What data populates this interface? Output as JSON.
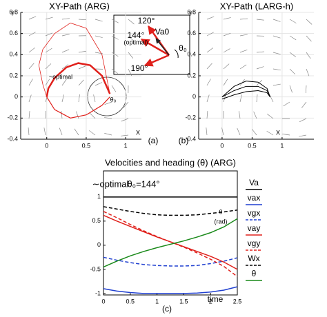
{
  "chart_data": [
    {
      "type": "path",
      "title": "XY-Path (ARG)",
      "xlabel": "X",
      "ylabel": "Y",
      "panel_label": "(a)",
      "xlim": [
        -0.33,
        1.2
      ],
      "ylim": [
        -0.4,
        0.8
      ],
      "xticks": [
        0,
        0.5,
        1
      ],
      "yticks": [
        -0.4,
        -0.2,
        0,
        0.2,
        0.4,
        0.6,
        0.8
      ],
      "grid": true,
      "annotations": [
        "~optimal",
        "θ₀"
      ],
      "inset": [
        "120°",
        "144°",
        "(optimal)",
        "190°",
        "Va0",
        "θ₀"
      ],
      "series": [
        {
          "color": "#e0201b",
          "width": 2.5,
          "x": [
            0.8,
            0.7,
            0.55,
            0.4,
            0.25,
            0.1,
            0.02,
            0.0
          ],
          "y": [
            0.03,
            0.2,
            0.3,
            0.32,
            0.28,
            0.18,
            0.08,
            0.0
          ]
        },
        {
          "color": "#e0201b",
          "width": 0.8,
          "x": [
            0.8,
            0.7,
            0.5,
            0.3,
            0.1,
            -0.05,
            -0.1,
            -0.05,
            0.0
          ],
          "y": [
            0.03,
            0.4,
            0.65,
            0.7,
            0.6,
            0.45,
            0.3,
            0.12,
            0.0
          ]
        },
        {
          "color": "#e0201b",
          "width": 1.2,
          "x": [
            0.0,
            0.1,
            0.3,
            0.5,
            0.7,
            0.8
          ],
          "y": [
            0.0,
            -0.12,
            -0.2,
            -0.17,
            -0.08,
            0.0
          ]
        }
      ]
    },
    {
      "type": "path",
      "title": "XY-Path (LARG-h)",
      "xlabel": "X",
      "ylabel": "Y",
      "panel_label": "(b)",
      "xlim": [
        -0.39,
        1.53
      ],
      "ylim": [
        -0.4,
        0.8
      ],
      "xticks": [
        0,
        0.5,
        1
      ],
      "yticks": [
        -0.4,
        -0.2,
        0,
        0.2,
        0.4,
        0.6,
        0.8
      ],
      "grid": true,
      "series": [
        {
          "color": "#000000",
          "width": 1,
          "x": [
            0.0,
            0.2,
            0.4,
            0.6,
            0.75,
            0.8
          ],
          "y": [
            0.0,
            0.1,
            0.15,
            0.14,
            0.08,
            0.0
          ]
        },
        {
          "color": "#000000",
          "width": 1,
          "x": [
            0.0,
            0.2,
            0.4,
            0.6,
            0.75,
            0.8
          ],
          "y": [
            0.0,
            0.06,
            0.1,
            0.1,
            0.06,
            0.0
          ]
        },
        {
          "color": "#000000",
          "width": 1,
          "x": [
            0.0,
            0.2,
            0.4,
            0.6,
            0.75,
            0.8
          ],
          "y": [
            -0.02,
            0.02,
            0.05,
            0.06,
            0.04,
            0.0
          ]
        }
      ]
    },
    {
      "type": "line",
      "title": "Velocities and heading (θ) (ARG)",
      "xlabel": "time",
      "panel_label": "(c)",
      "xlim": [
        0,
        2.5
      ],
      "ylim": [
        -1.03,
        1.54
      ],
      "xticks": [
        0,
        0.5,
        1,
        1.5,
        2,
        2.5
      ],
      "yticks": [
        -1,
        -0.5,
        0,
        0.5,
        1
      ],
      "annotations": [
        "∼optimal",
        "θ₀=144°",
        "θ",
        "(rad)"
      ],
      "x": [
        0,
        0.25,
        0.5,
        0.75,
        1,
        1.25,
        1.5,
        1.75,
        2,
        2.25,
        2.5
      ],
      "series": [
        {
          "name": "Va",
          "color": "#000000",
          "dashed": false,
          "values": [
            1,
            1,
            1,
            1,
            1,
            1,
            1,
            1,
            1,
            1,
            1
          ]
        },
        {
          "name": "vax",
          "color": "#1f3fd0",
          "dashed": false,
          "values": [
            -0.9,
            -0.95,
            -0.98,
            -1.0,
            -1.0,
            -1.0,
            -1.0,
            -0.99,
            -0.97,
            -0.93,
            -0.86
          ]
        },
        {
          "name": "vgx",
          "color": "#1f3fd0",
          "dashed": true,
          "values": [
            -0.25,
            -0.31,
            -0.36,
            -0.4,
            -0.42,
            -0.43,
            -0.43,
            -0.42,
            -0.38,
            -0.33,
            -0.26
          ]
        },
        {
          "name": "vay",
          "color": "#e0201b",
          "dashed": false,
          "values": [
            0.62,
            0.5,
            0.39,
            0.28,
            0.17,
            0.07,
            -0.03,
            -0.13,
            -0.23,
            -0.35,
            -0.5
          ]
        },
        {
          "name": "vgy",
          "color": "#e0201b",
          "dashed": true,
          "values": [
            0.7,
            0.57,
            0.43,
            0.3,
            0.18,
            0.07,
            -0.04,
            -0.16,
            -0.29,
            -0.44,
            -0.65
          ]
        },
        {
          "name": "Wx",
          "color": "#000000",
          "dashed": true,
          "values": [
            0.8,
            0.75,
            0.7,
            0.66,
            0.63,
            0.62,
            0.62,
            0.63,
            0.66,
            0.69,
            0.73
          ]
        },
        {
          "name": "θ",
          "color": "#1a8a1a",
          "dashed": false,
          "values": [
            -0.45,
            -0.33,
            -0.22,
            -0.13,
            -0.05,
            0.02,
            0.09,
            0.17,
            0.26,
            0.38,
            0.55
          ]
        }
      ]
    }
  ]
}
